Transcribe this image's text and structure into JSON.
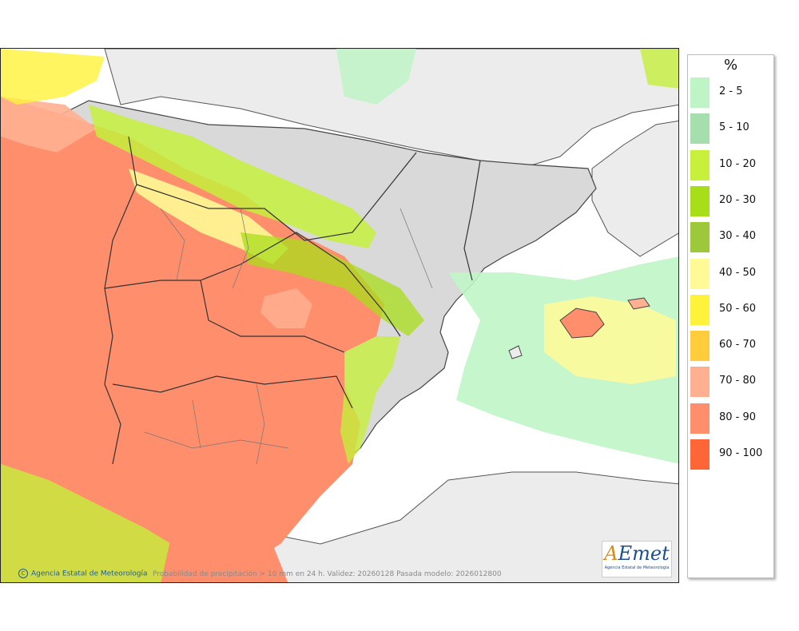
{
  "map": {
    "credit": "Agencia Estatal de Meteorología",
    "caption": "Probabilidad de precipitación > 10 mm en 24 h. Validez: 20260128 Pasada modelo: 2026012800",
    "logo_text": "AEmet",
    "logo_subtitle": "Agencia Estatal de Meteorología"
  },
  "legend": {
    "title": "%",
    "items": [
      {
        "label": "2 - 5",
        "color": "#bff5c6"
      },
      {
        "label": "5 - 10",
        "color": "#a6dfad"
      },
      {
        "label": "10 - 20",
        "color": "#c6f03c"
      },
      {
        "label": "20 - 30",
        "color": "#a8dd1a"
      },
      {
        "label": "30 - 40",
        "color": "#9cc83a"
      },
      {
        "label": "40 - 50",
        "color": "#fffa96"
      },
      {
        "label": "50 - 60",
        "color": "#fff23a"
      },
      {
        "label": "60 - 70",
        "color": "#ffcc3c"
      },
      {
        "label": "70 - 80",
        "color": "#ffb090"
      },
      {
        "label": "80 - 90",
        "color": "#ff8e6c"
      },
      {
        "label": "90 - 100",
        "color": "#ff6637"
      }
    ]
  }
}
